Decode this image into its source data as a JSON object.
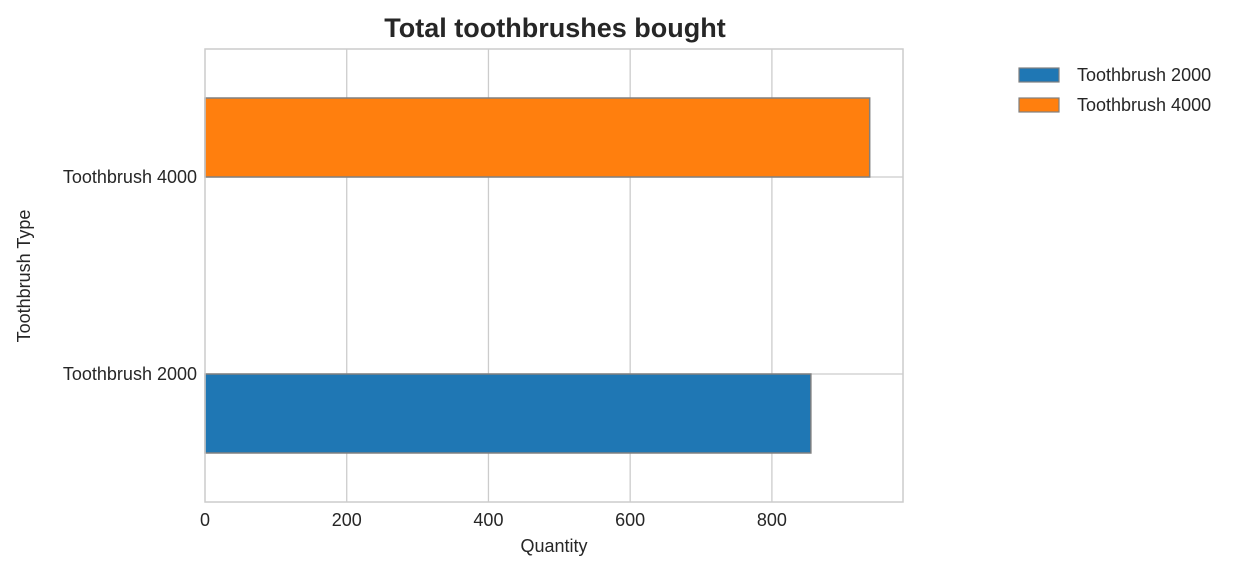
{
  "chart_data": {
    "type": "bar",
    "orientation": "horizontal",
    "title": "Total toothbrushes bought",
    "xlabel": "Quantity",
    "ylabel": "Toothbrush Type",
    "categories": [
      "Toothbrush 2000",
      "Toothbrush 4000"
    ],
    "series": [
      {
        "name": "Toothbrush 2000",
        "category": "Toothbrush 2000",
        "value": 855,
        "color": "#1f77b4"
      },
      {
        "name": "Toothbrush 4000",
        "category": "Toothbrush 4000",
        "value": 938,
        "color": "#ff7f0e"
      }
    ],
    "xlim": [
      0,
      985
    ],
    "xticks": [
      0,
      200,
      400,
      600,
      800
    ],
    "xtick_labels": [
      "0",
      "200",
      "400",
      "600",
      "800"
    ],
    "grid": true,
    "legend_position": "outside-top-right",
    "bar_edge_color": "#808080"
  }
}
